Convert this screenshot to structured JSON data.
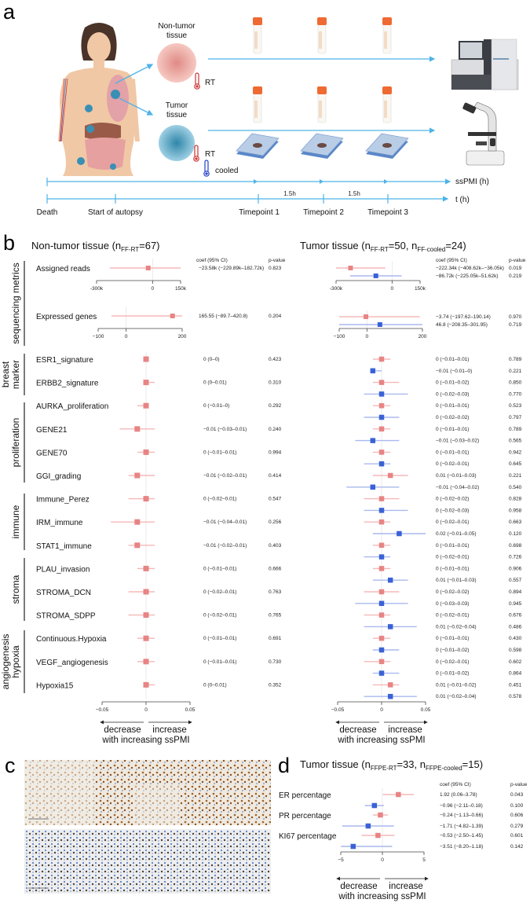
{
  "panels": {
    "a": "a",
    "b": "b",
    "c": "c",
    "d": "d"
  },
  "panel_a": {
    "non_tumor_line1": "Non-tumor",
    "non_tumor_line2": "tissue",
    "tumor_line1": "Tumor",
    "tumor_line2": "tissue",
    "rt1": "RT",
    "rt2": "RT",
    "cooled": "cooled",
    "sspmi_axis": "ssPMI (h)",
    "t_axis": "t (h)",
    "interval1": "1.5h",
    "interval2": "1.5h",
    "timeline": [
      "Death",
      "Start of autopsy",
      "Timepoint 1",
      "Timepoint 2",
      "Timepoint 3"
    ]
  },
  "colors": {
    "rt": "#e88484",
    "rt_ci": "#f5b8b8",
    "cooled": "#3a62d6",
    "cooled_ci": "#aab9ee",
    "timeline": "#4db3e8"
  },
  "chart_data": [
    {
      "type": "forest",
      "id": "non_tumor",
      "title_parts": [
        "Non-tumor tissue (n",
        "FF-RT",
        "=67)"
      ],
      "coef_header": "coef (95% CI)",
      "p_header": "p-value",
      "direction": {
        "decrease": "decrease",
        "increase": "increase",
        "caption": "with increasing ssPMI"
      },
      "seq_rows": [
        {
          "label": "Assigned reads",
          "unit_ticks": [
            "-300k",
            "0",
            "150k"
          ],
          "tick_values": [
            -300,
            0,
            150
          ],
          "xlim": [
            -300,
            150
          ],
          "series": [
            {
              "coef": -23.58,
              "lo": -229.89,
              "hi": 182.72,
              "text": "−23.58k (−229.89k–182.72k)",
              "p": "0.823",
              "group": "rt"
            }
          ]
        },
        {
          "label": "Expressed genes",
          "unit_ticks": [
            "−100",
            "0",
            "200"
          ],
          "tick_values": [
            -100,
            0,
            200
          ],
          "xlim": [
            -100,
            200
          ],
          "series": [
            {
              "coef": 165.55,
              "lo": -89.7,
              "hi": 420.8,
              "text": "165.55 (−89.7–420.8)",
              "p": "0.204",
              "group": "rt"
            }
          ]
        }
      ],
      "xlim": [
        -0.05,
        0.05
      ],
      "ticks": [
        "−0.05",
        "0",
        "0.05"
      ],
      "tick_values": [
        -0.05,
        0,
        0.05
      ],
      "rows": [
        {
          "label": "ESR1_signature",
          "series": [
            {
              "coef": 0,
              "lo": 0,
              "hi": 0,
              "text": "0 (0–0)",
              "p": "0.423",
              "group": "rt"
            }
          ]
        },
        {
          "label": "ERBB2_signature",
          "series": [
            {
              "coef": 0,
              "lo": 0,
              "hi": 0.01,
              "text": "0 (0–0.01)",
              "p": "0.310",
              "group": "rt"
            }
          ]
        },
        {
          "label": "AURKA_proliferation",
          "series": [
            {
              "coef": 0,
              "lo": -0.01,
              "hi": 0,
              "text": "0 (−0.01–0)",
              "p": "0.292",
              "group": "rt"
            }
          ]
        },
        {
          "label": "GENE21",
          "series": [
            {
              "coef": -0.01,
              "lo": -0.03,
              "hi": 0.01,
              "text": "−0.01 (−0.03–0.01)",
              "p": "0.240",
              "group": "rt"
            }
          ]
        },
        {
          "label": "GENE70",
          "series": [
            {
              "coef": 0,
              "lo": -0.01,
              "hi": 0.01,
              "text": "0 (−0.01–0.01)",
              "p": "0.994",
              "group": "rt"
            }
          ]
        },
        {
          "label": "GGI_grading",
          "series": [
            {
              "coef": -0.01,
              "lo": -0.02,
              "hi": 0.01,
              "text": "−0.01 (−0.02–0.01)",
              "p": "0.414",
              "group": "rt"
            }
          ]
        },
        {
          "label": "Immune_Perez",
          "series": [
            {
              "coef": 0,
              "lo": -0.02,
              "hi": 0.01,
              "text": "0 (−0.02–0.01)",
              "p": "0.547",
              "group": "rt"
            }
          ]
        },
        {
          "label": "IRM_immune",
          "series": [
            {
              "coef": -0.01,
              "lo": -0.04,
              "hi": 0.01,
              "text": "−0.01 (−0.04–0.01)",
              "p": "0.256",
              "group": "rt"
            }
          ]
        },
        {
          "label": "STAT1_immune",
          "series": [
            {
              "coef": -0.01,
              "lo": -0.02,
              "hi": 0.01,
              "text": "−0.01 (−0.02–0.01)",
              "p": "0.403",
              "group": "rt"
            }
          ]
        },
        {
          "label": "PLAU_invasion",
          "series": [
            {
              "coef": 0,
              "lo": -0.01,
              "hi": 0.01,
              "text": "0 (−0.01–0.01)",
              "p": "0.666",
              "group": "rt"
            }
          ]
        },
        {
          "label": "STROMA_DCN",
          "series": [
            {
              "coef": 0,
              "lo": -0.02,
              "hi": 0.01,
              "text": "0 (−0.02–0.01)",
              "p": "0.763",
              "group": "rt"
            }
          ]
        },
        {
          "label": "STROMA_SDPP",
          "series": [
            {
              "coef": 0,
              "lo": -0.02,
              "hi": 0.01,
              "text": "0 (−0.02–0.01)",
              "p": "0.765",
              "group": "rt"
            }
          ]
        },
        {
          "label": "Continuous.Hypoxia",
          "series": [
            {
              "coef": 0,
              "lo": -0.01,
              "hi": 0.01,
              "text": "0 (−0.01–0.01)",
              "p": "0.691",
              "group": "rt"
            }
          ]
        },
        {
          "label": "VEGF_angiogenesis",
          "series": [
            {
              "coef": 0,
              "lo": -0.01,
              "hi": 0.01,
              "text": "0 (−0.01–0.01)",
              "p": "0.730",
              "group": "rt"
            }
          ]
        },
        {
          "label": "Hypoxia15",
          "series": [
            {
              "coef": 0,
              "lo": 0,
              "hi": 0.01,
              "text": "0 (0–0.01)",
              "p": "0.352",
              "group": "rt"
            }
          ]
        }
      ],
      "groups": [
        {
          "lines": [
            "sequencing metrics"
          ]
        },
        {
          "lines": [
            "breast",
            "marker"
          ]
        },
        {
          "lines": [
            "proliferation"
          ]
        },
        {
          "lines": [
            "immune"
          ]
        },
        {
          "lines": [
            "stroma"
          ]
        },
        {
          "lines": [
            "angiogenesis",
            "hypoxia"
          ]
        }
      ]
    },
    {
      "type": "forest",
      "id": "tumor",
      "title_parts": [
        "Tumor tissue (n",
        "FF-RT",
        "=50, n",
        "FF-cooled",
        "=24)"
      ],
      "coef_header": "coef (95% CI)",
      "p_header": "p-value",
      "direction": {
        "decrease": "decrease",
        "increase": "increase",
        "caption": "with increasing ssPMI"
      },
      "seq_rows": [
        {
          "label": "Assigned reads",
          "unit_ticks": [
            "-300k",
            "0",
            "150k"
          ],
          "tick_values": [
            -300,
            0,
            150
          ],
          "xlim": [
            -300,
            150
          ],
          "series": [
            {
              "coef": -222.34,
              "lo": -408.62,
              "hi": -36.05,
              "text": "−222.34k (−408.62k–−36.05k)",
              "p": "0.019",
              "group": "rt"
            },
            {
              "coef": -86.72,
              "lo": -225.05,
              "hi": 51.62,
              "text": "−86.72k (−225.05k–51.62k)",
              "p": "0.219",
              "group": "cooled"
            }
          ]
        },
        {
          "label": "Expressed genes",
          "unit_ticks": [
            "−100",
            "0",
            "200"
          ],
          "tick_values": [
            -100,
            0,
            200
          ],
          "xlim": [
            -100,
            200
          ],
          "series": [
            {
              "coef": -3.74,
              "lo": -197.62,
              "hi": 190.14,
              "text": "−3.74 (−197.62–190.14)",
              "p": "0.970",
              "group": "rt"
            },
            {
              "coef": 46.8,
              "lo": -208.35,
              "hi": 301.95,
              "text": "46.8 (−208.35–301.95)",
              "p": "0.719",
              "group": "cooled"
            }
          ]
        }
      ],
      "xlim": [
        -0.05,
        0.05
      ],
      "ticks": [
        "−0.05",
        "0",
        "0.05"
      ],
      "tick_values": [
        -0.05,
        0,
        0.05
      ],
      "rows": [
        {
          "label": "ESR1_signature",
          "series": [
            {
              "coef": 0,
              "lo": -0.01,
              "hi": 0.01,
              "text": "0 (−0.01–0.01)",
              "p": "0.789",
              "group": "rt"
            },
            {
              "coef": -0.01,
              "lo": -0.01,
              "hi": 0,
              "text": "−0.01 (−0.01–0)",
              "p": "0.221",
              "group": "cooled"
            }
          ]
        },
        {
          "label": "ERBB2_signature",
          "series": [
            {
              "coef": 0,
              "lo": -0.01,
              "hi": 0.02,
              "text": "0 (−0.01–0.02)",
              "p": "0.850",
              "group": "rt"
            },
            {
              "coef": 0,
              "lo": -0.02,
              "hi": 0.03,
              "text": "0 (−0.02–0.03)",
              "p": "0.770",
              "group": "cooled"
            }
          ]
        },
        {
          "label": "AURKA_proliferation",
          "series": [
            {
              "coef": 0,
              "lo": -0.01,
              "hi": 0.01,
              "text": "0 (−0.01–0.01)",
              "p": "0.523",
              "group": "rt"
            },
            {
              "coef": 0,
              "lo": -0.02,
              "hi": 0.02,
              "text": "0 (−0.02–0.02)",
              "p": "0.797",
              "group": "cooled"
            }
          ]
        },
        {
          "label": "GENE21",
          "series": [
            {
              "coef": 0,
              "lo": -0.01,
              "hi": 0.01,
              "text": "0 (−0.01–0.01)",
              "p": "0.789",
              "group": "rt"
            },
            {
              "coef": -0.01,
              "lo": -0.03,
              "hi": 0.02,
              "text": "−0.01 (−0.03–0.02)",
              "p": "0.565",
              "group": "cooled"
            }
          ]
        },
        {
          "label": "GENE70",
          "series": [
            {
              "coef": 0,
              "lo": -0.01,
              "hi": 0.01,
              "text": "0 (−0.01–0.01)",
              "p": "0.942",
              "group": "rt"
            },
            {
              "coef": 0,
              "lo": -0.02,
              "hi": 0.01,
              "text": "0 (−0.02–0.01)",
              "p": "0.645",
              "group": "cooled"
            }
          ]
        },
        {
          "label": "GGI_grading",
          "series": [
            {
              "coef": 0.01,
              "lo": -0.01,
              "hi": 0.03,
              "text": "0.01 (−0.01–0.03)",
              "p": "0.221",
              "group": "rt"
            },
            {
              "coef": -0.01,
              "lo": -0.04,
              "hi": 0.02,
              "text": "−0.01 (−0.04–0.02)",
              "p": "0.540",
              "group": "cooled"
            }
          ]
        },
        {
          "label": "Immune_Perez",
          "series": [
            {
              "coef": 0,
              "lo": -0.02,
              "hi": 0.02,
              "text": "0 (−0.02–0.02)",
              "p": "0.828",
              "group": "rt"
            },
            {
              "coef": 0,
              "lo": -0.02,
              "hi": 0.03,
              "text": "0 (−0.02–0.03)",
              "p": "0.958",
              "group": "cooled"
            }
          ]
        },
        {
          "label": "IRM_immune",
          "series": [
            {
              "coef": 0,
              "lo": -0.02,
              "hi": 0.01,
              "text": "0 (−0.02–0.01)",
              "p": "0.663",
              "group": "rt"
            },
            {
              "coef": 0.02,
              "lo": -0.01,
              "hi": 0.05,
              "text": "0.02 (−0.01–0.05)",
              "p": "0.120",
              "group": "cooled"
            }
          ]
        },
        {
          "label": "STAT1_immune",
          "series": [
            {
              "coef": 0,
              "lo": -0.01,
              "hi": 0.01,
              "text": "0 (−0.01–0.01)",
              "p": "0.698",
              "group": "rt"
            },
            {
              "coef": 0,
              "lo": -0.02,
              "hi": 0.01,
              "text": "0 (−0.02–0.01)",
              "p": "0.726",
              "group": "cooled"
            }
          ]
        },
        {
          "label": "PLAU_invasion",
          "series": [
            {
              "coef": 0,
              "lo": -0.01,
              "hi": 0.01,
              "text": "0 (−0.01–0.01)",
              "p": "0.906",
              "group": "rt"
            },
            {
              "coef": 0.01,
              "lo": -0.01,
              "hi": 0.03,
              "text": "0.01 (−0.01–0.03)",
              "p": "0.557",
              "group": "cooled"
            }
          ]
        },
        {
          "label": "STROMA_DCN",
          "series": [
            {
              "coef": 0,
              "lo": -0.02,
              "hi": 0.02,
              "text": "0 (−0.02–0.02)",
              "p": "0.894",
              "group": "rt"
            },
            {
              "coef": 0,
              "lo": -0.03,
              "hi": 0.03,
              "text": "0 (−0.03–0.03)",
              "p": "0.945",
              "group": "cooled"
            }
          ]
        },
        {
          "label": "STROMA_SDPP",
          "series": [
            {
              "coef": 0,
              "lo": -0.02,
              "hi": 0.01,
              "text": "0 (−0.02–0.01)",
              "p": "0.676",
              "group": "rt"
            },
            {
              "coef": 0.01,
              "lo": -0.02,
              "hi": 0.04,
              "text": "0.01 (−0.02–0.04)",
              "p": "0.486",
              "group": "cooled"
            }
          ]
        },
        {
          "label": "Continuous.Hypoxia",
          "series": [
            {
              "coef": 0,
              "lo": -0.01,
              "hi": 0.01,
              "text": "0 (−0.01–0.01)",
              "p": "0.430",
              "group": "rt"
            },
            {
              "coef": 0,
              "lo": -0.01,
              "hi": 0.02,
              "text": "0 (−0.01–0.02)",
              "p": "0.598",
              "group": "cooled"
            }
          ]
        },
        {
          "label": "VEGF_angiogenesis",
          "series": [
            {
              "coef": 0,
              "lo": -0.02,
              "hi": 0.01,
              "text": "0 (−0.02–0.01)",
              "p": "0.602",
              "group": "rt"
            },
            {
              "coef": 0,
              "lo": -0.01,
              "hi": 0.02,
              "text": "0 (−0.01–0.02)",
              "p": "0.864",
              "group": "cooled"
            }
          ]
        },
        {
          "label": "Hypoxia15",
          "series": [
            {
              "coef": 0.01,
              "lo": -0.01,
              "hi": 0.02,
              "text": "0.01 (−0.01–0.02)",
              "p": "0.451",
              "group": "rt"
            },
            {
              "coef": 0.01,
              "lo": -0.02,
              "hi": 0.04,
              "text": "0.01 (−0.02–0.04)",
              "p": "0.578",
              "group": "cooled"
            }
          ]
        }
      ]
    },
    {
      "type": "forest",
      "id": "ihc",
      "title_parts": [
        "Tumor tissue (n",
        "FFPE-RT",
        "=33, n",
        "FFPE-cooled",
        "=15)"
      ],
      "coef_header": "coef (95% CI)",
      "p_header": "p-value",
      "direction": {
        "decrease": "decrease",
        "increase": "increase",
        "caption": "with increasing ssPMI"
      },
      "xlim": [
        -5,
        5
      ],
      "ticks": [
        "−5",
        "0",
        "5"
      ],
      "tick_values": [
        -5,
        0,
        5
      ],
      "rows": [
        {
          "label": "ER percentage",
          "series": [
            {
              "coef": 1.92,
              "lo": 0.06,
              "hi": 3.78,
              "text": "1.92 (0.06–3.78)",
              "p": "0.043",
              "group": "rt"
            },
            {
              "coef": -0.96,
              "lo": -2.11,
              "hi": 0.18,
              "text": "−0.96 (−2.11–0.18)",
              "p": "0.100",
              "group": "cooled"
            }
          ]
        },
        {
          "label": "PR percentage",
          "series": [
            {
              "coef": -0.24,
              "lo": -1.13,
              "hi": 0.66,
              "text": "−0.24 (−1.13–0.66)",
              "p": "0.606",
              "group": "rt"
            },
            {
              "coef": -1.71,
              "lo": -4.82,
              "hi": 1.39,
              "text": "−1.71 (−4.82–1.39)",
              "p": "0.279",
              "group": "cooled"
            }
          ]
        },
        {
          "label": "KI67 percentage",
          "series": [
            {
              "coef": -0.53,
              "lo": -2.5,
              "hi": 1.45,
              "text": "−0.53 (−2.50–1.45)",
              "p": "0.601",
              "group": "rt"
            },
            {
              "coef": -3.51,
              "lo": -8.2,
              "hi": 1.18,
              "text": "−3.51 (−8.20–1.18)",
              "p": "0.142",
              "group": "cooled"
            }
          ]
        }
      ]
    }
  ]
}
